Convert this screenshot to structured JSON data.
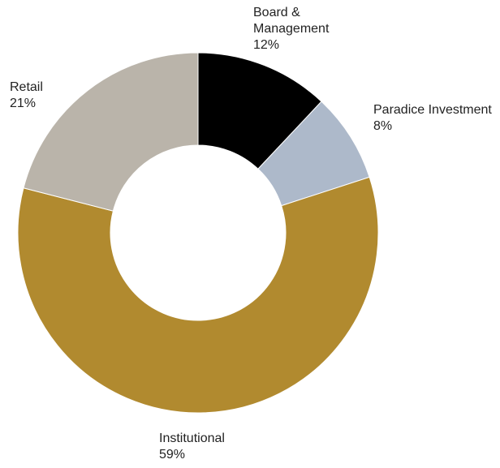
{
  "chart_data": {
    "type": "pie",
    "slices": [
      {
        "label": [
          "Board &",
          "Management"
        ],
        "value": 12,
        "value_label": "12%",
        "color": "#000000"
      },
      {
        "label": [
          "Paradice Investment"
        ],
        "value": 8,
        "value_label": "8%",
        "color": "#adb9ca"
      },
      {
        "label": [
          "Institutional"
        ],
        "value": 59,
        "value_label": "59%",
        "color": "#b18a2f"
      },
      {
        "label": [
          "Retail"
        ],
        "value": 21,
        "value_label": "21%",
        "color": "#bab4aa"
      }
    ],
    "start_angle_deg": 0,
    "direction": "clockwise",
    "donut": true
  }
}
